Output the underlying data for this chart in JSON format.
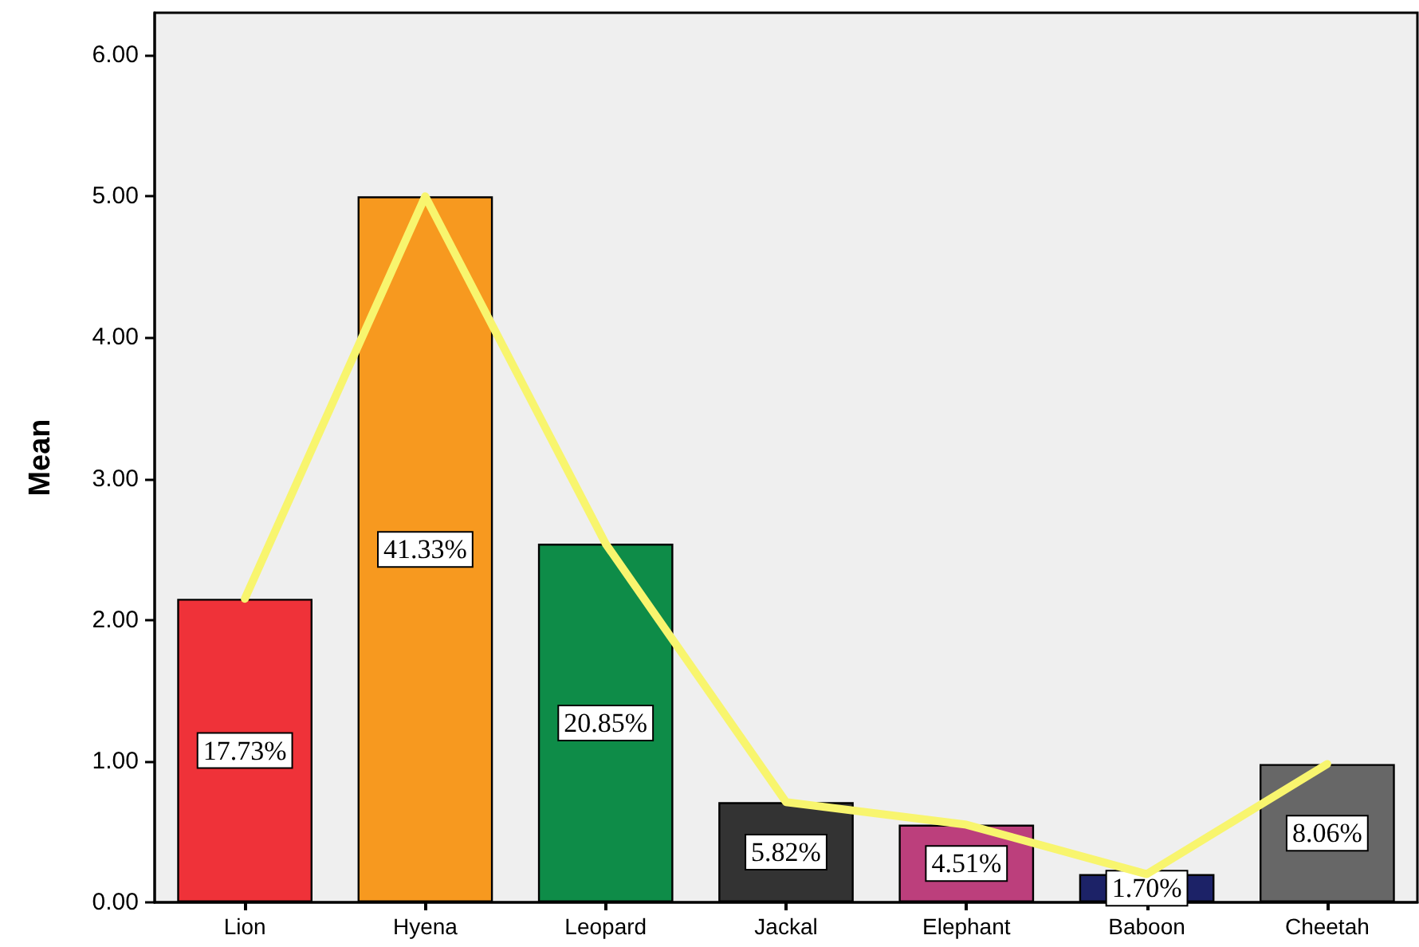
{
  "chart_data": {
    "type": "bar",
    "ylabel": "Mean",
    "categories": [
      "Lion",
      "Hyena",
      "Leopard",
      "Jackal",
      "Elephant",
      "Baboon",
      "Cheetah"
    ],
    "ylim": [
      0,
      6.3
    ],
    "yticks": [
      {
        "value": 0,
        "label": "0.00"
      },
      {
        "value": 1,
        "label": "1.00"
      },
      {
        "value": 2,
        "label": "2.00"
      },
      {
        "value": 3,
        "label": "3.00"
      },
      {
        "value": 4,
        "label": "4.00"
      },
      {
        "value": 5,
        "label": "5.00"
      },
      {
        "value": 6,
        "label": "6.00"
      }
    ],
    "grid": false,
    "annotations": [
      "17.73%",
      "41.33%",
      "20.85%",
      "5.82%",
      "4.51%",
      "1.70%",
      "8.06%"
    ],
    "series": [
      {
        "colors": [
          "#ef3239",
          "#f7991f",
          "#0e8c48",
          "#333333",
          "#bc3f7c",
          "#1c2267",
          "#676767"
        ],
        "values": [
          2.15,
          5.0,
          2.54,
          0.71,
          0.55,
          0.2,
          0.98
        ]
      },
      {
        "type": "line",
        "color": "#f8f56e",
        "marker": "none",
        "values": [
          2.15,
          5.0,
          2.54,
          0.71,
          0.55,
          0.2,
          0.98
        ]
      }
    ]
  }
}
